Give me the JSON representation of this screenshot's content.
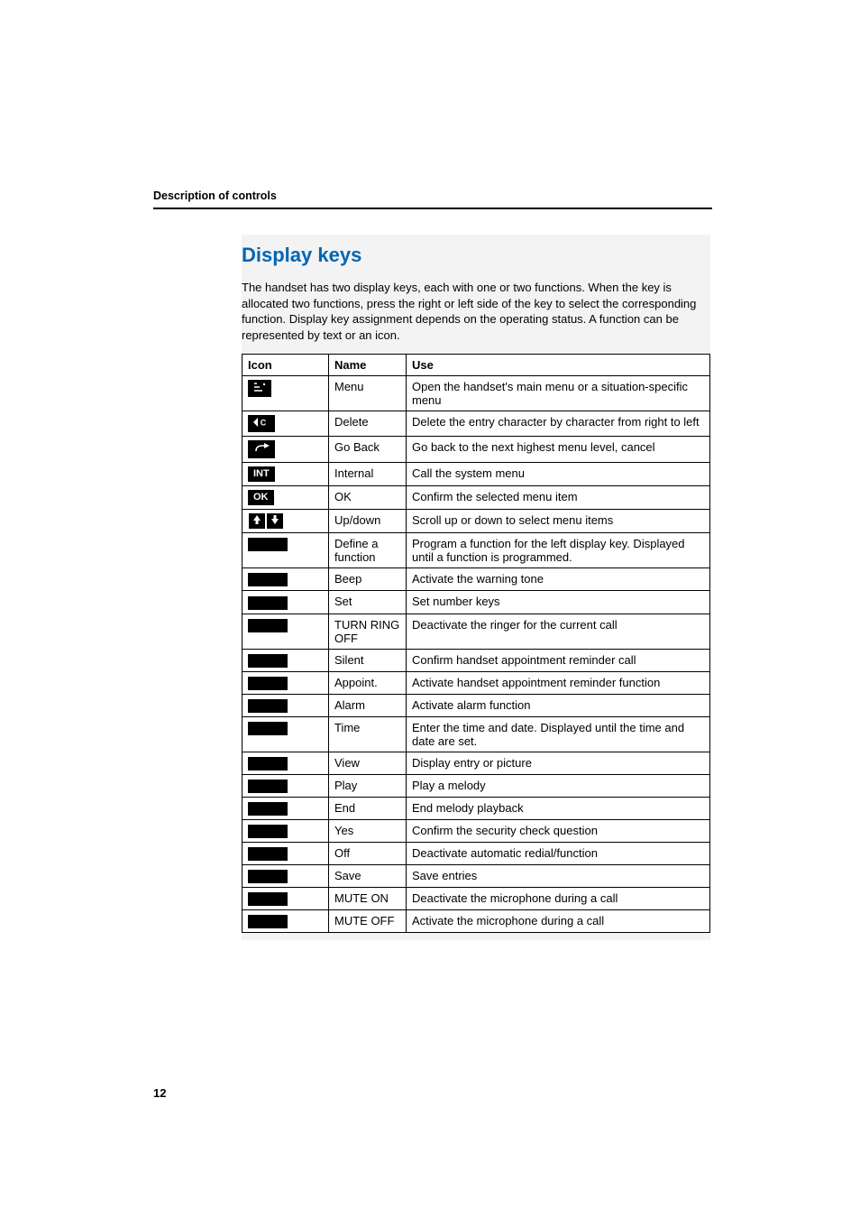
{
  "running_head": "Description of controls",
  "section_title": "Display keys",
  "intro": "The handset has two display keys, each with one or two functions. When the key is allocated two functions, press the right or left side of the key to select the corresponding function. Display key assignment depends on the operating status. A function can be represented by text or an icon.",
  "columns": {
    "icon": "Icon",
    "name": "Name",
    "use": "Use"
  },
  "rows": [
    {
      "icon_type": "menu",
      "name": "Menu",
      "use": "Open the handset's main menu or a situation-specific menu"
    },
    {
      "icon_type": "delete",
      "name": "Delete",
      "use": "Delete the entry character by character from right to left"
    },
    {
      "icon_type": "goback",
      "name": "Go Back",
      "use": "Go back to the next highest menu level, cancel"
    },
    {
      "icon_type": "int",
      "name": "Internal",
      "use": "Call the system menu"
    },
    {
      "icon_type": "ok",
      "name": "OK",
      "use": "Confirm the selected menu item"
    },
    {
      "icon_type": "updown",
      "name": "Up/down",
      "use": "Scroll up or down to select menu items"
    },
    {
      "icon_type": "blank",
      "name": "Define a function",
      "use": "Program a function for the left display key. Displayed until a function is programmed."
    },
    {
      "icon_type": "blank",
      "name": "Beep",
      "use": "Activate the warning tone"
    },
    {
      "icon_type": "blank",
      "name": "Set",
      "use": "Set number keys"
    },
    {
      "icon_type": "blank",
      "name": "TURN RING OFF",
      "use": "Deactivate the ringer for the current call"
    },
    {
      "icon_type": "blank",
      "name": "Silent",
      "use": "Confirm handset appointment reminder call"
    },
    {
      "icon_type": "blank",
      "name": "Appoint.",
      "use": "Activate handset appointment reminder function"
    },
    {
      "icon_type": "blank",
      "name": "Alarm",
      "use": "Activate alarm function"
    },
    {
      "icon_type": "blank",
      "name": "Time",
      "use": "Enter the time and date. Displayed until the time and date are set."
    },
    {
      "icon_type": "blank",
      "name": "View",
      "use": "Display entry or picture"
    },
    {
      "icon_type": "blank",
      "name": "Play",
      "use": "Play a melody"
    },
    {
      "icon_type": "blank",
      "name": "End",
      "use": "End melody playback"
    },
    {
      "icon_type": "blank",
      "name": "Yes",
      "use": "Confirm the security check question"
    },
    {
      "icon_type": "blank",
      "name": "Off",
      "use": "Deactivate automatic redial/function"
    },
    {
      "icon_type": "blank",
      "name": "Save",
      "use": "Save entries"
    },
    {
      "icon_type": "blank",
      "name": "MUTE ON",
      "use": "Deactivate the microphone during a call"
    },
    {
      "icon_type": "blank",
      "name": "MUTE OFF",
      "use": "Activate the microphone during a call"
    }
  ],
  "icon_labels": {
    "int": "INT",
    "ok": "OK"
  },
  "page_number": "12",
  "colors": {
    "accent": "#0066b3",
    "text": "#000000",
    "shade": "#f3f3f3"
  }
}
